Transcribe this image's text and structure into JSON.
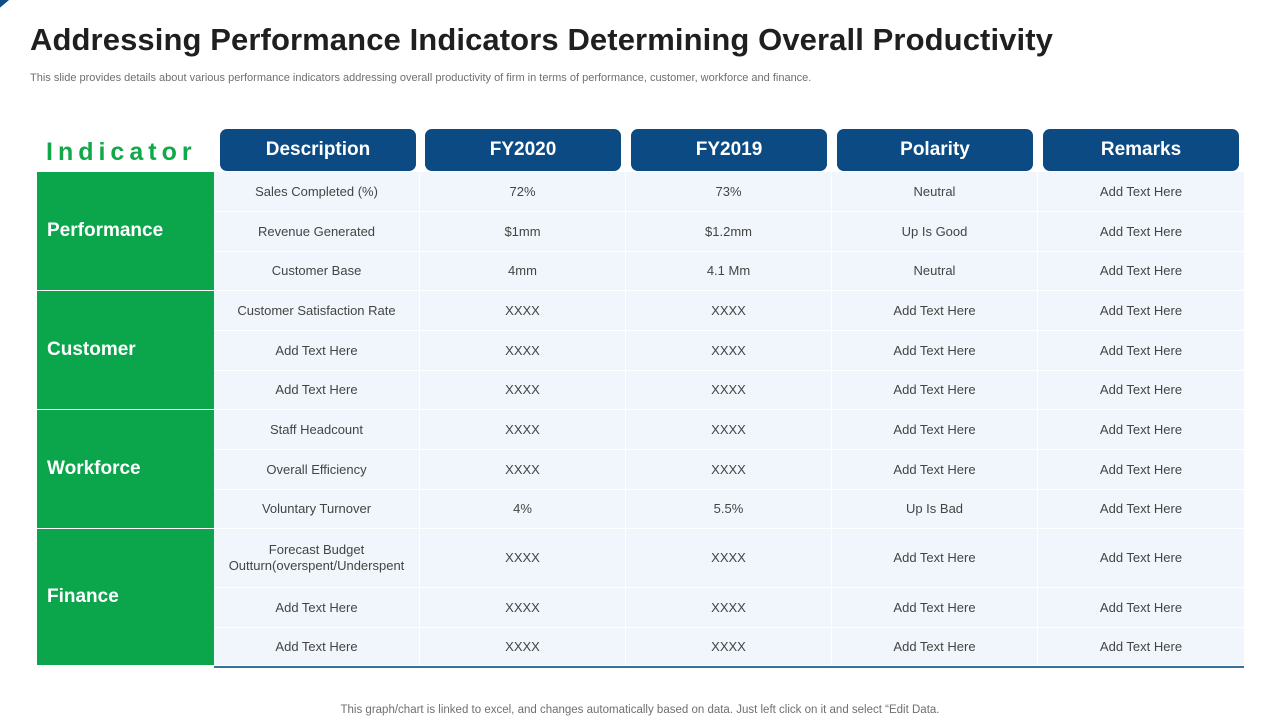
{
  "title": "Addressing Performance Indicators Determining Overall Productivity",
  "subtitle": "This slide provides details about various performance indicators addressing overall productivity of firm in terms of performance, customer, workforce and finance.",
  "indicator_label": "Indicator",
  "headers": [
    "Description",
    "FY2020",
    "FY2019",
    "Polarity",
    "Remarks"
  ],
  "groups": [
    {
      "name": "Performance",
      "rows": [
        [
          "Sales Completed (%)",
          "72%",
          "73%",
          "Neutral",
          "Add Text Here"
        ],
        [
          "Revenue  Generated",
          "$1mm",
          "$1.2mm",
          "Up Is Good",
          "Add Text Here"
        ],
        [
          "Customer Base",
          "4mm",
          "4.1 Mm",
          "Neutral",
          "Add Text Here"
        ]
      ]
    },
    {
      "name": "Customer",
      "rows": [
        [
          "Customer Satisfaction Rate",
          "XXXX",
          "XXXX",
          "Add Text Here",
          "Add Text Here"
        ],
        [
          "Add Text Here",
          "XXXX",
          "XXXX",
          "Add Text Here",
          "Add Text Here"
        ],
        [
          "Add Text Here",
          "XXXX",
          "XXXX",
          "Add Text Here",
          "Add Text Here"
        ]
      ]
    },
    {
      "name": "Workforce",
      "rows": [
        [
          "Staff Headcount",
          "XXXX",
          "XXXX",
          "Add Text Here",
          "Add Text Here"
        ],
        [
          "Overall  Efficiency",
          "XXXX",
          "XXXX",
          "Add Text Here",
          "Add Text Here"
        ],
        [
          "Voluntary Turnover",
          "4%",
          "5.5%",
          "Up Is Bad",
          "Add Text Here"
        ]
      ]
    },
    {
      "name": "Finance",
      "rows": [
        [
          "Forecast Budget Outturn(overspent/Underspent",
          "XXXX",
          "XXXX",
          "Add Text Here",
          "Add Text Here"
        ],
        [
          "Add Text Here",
          "XXXX",
          "XXXX",
          "Add Text Here",
          "Add Text Here"
        ],
        [
          "Add Text Here",
          "XXXX",
          "XXXX",
          "Add Text Here",
          "Add Text Here"
        ]
      ]
    }
  ],
  "footer": "This graph/chart is linked to excel,  and changes automatically based on data. Just left click on it and select “Edit Data."
}
